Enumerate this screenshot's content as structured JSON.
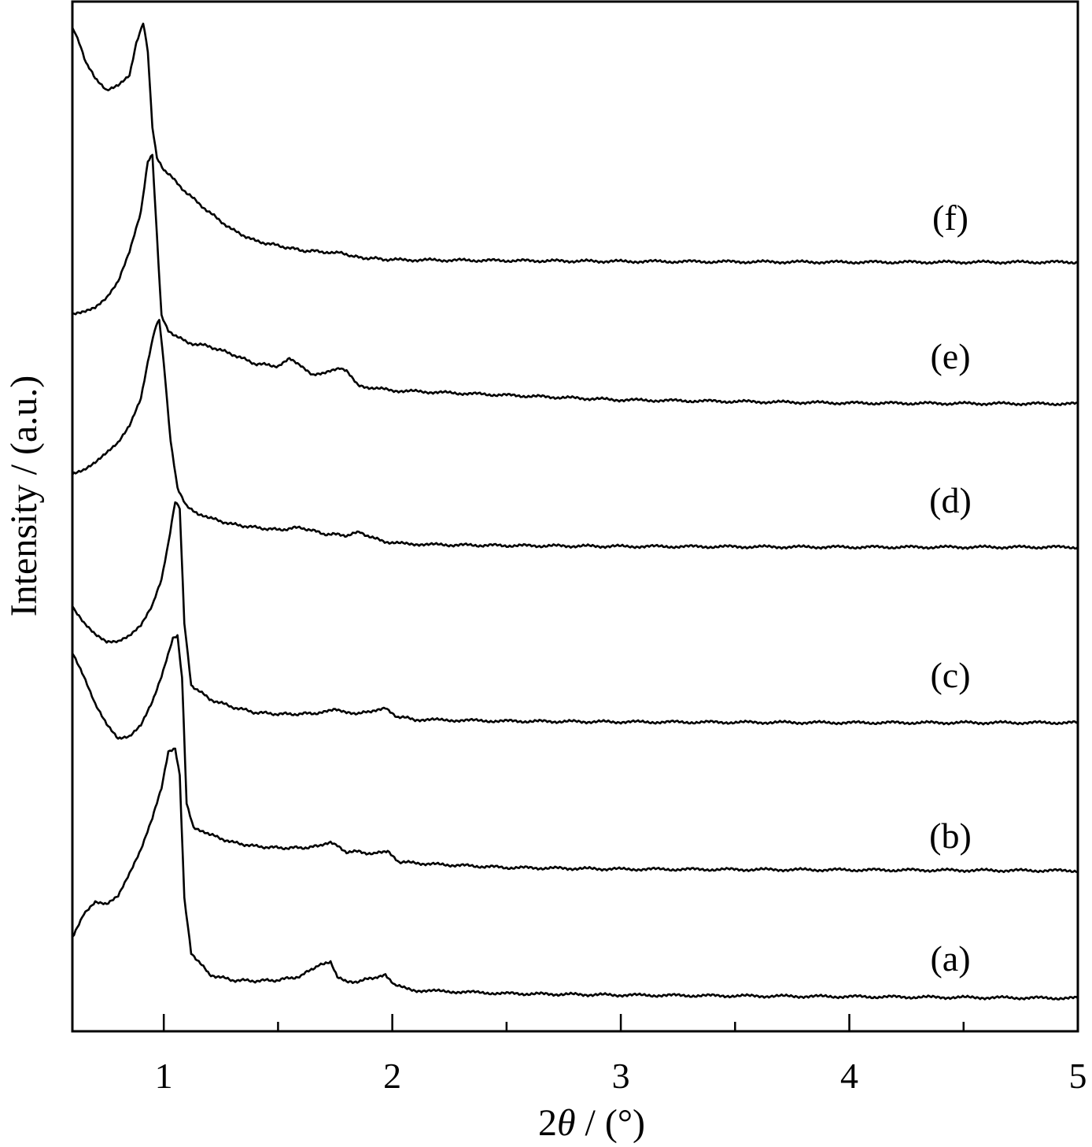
{
  "chart_data": {
    "type": "line",
    "title": "",
    "xlabel_prefix": "2",
    "xlabel_theta": "θ",
    "xlabel_suffix": " / (°)",
    "ylabel": "Intensity / (a.u.)",
    "xlim": [
      0.6,
      5.0
    ],
    "yticks_shown": false,
    "grid": false,
    "legend": "none",
    "x_major_ticks": [
      1,
      2,
      3,
      4,
      5
    ],
    "x_minor_ticks": [
      1.5,
      2.5,
      3.5,
      4.5
    ],
    "x_tick_labels": [
      "1",
      "2",
      "3",
      "4",
      "5"
    ],
    "line_color": "#000000",
    "series": [
      {
        "name": "(a)",
        "points": [
          [
            0.6,
            1190
          ],
          [
            0.65,
            1160
          ],
          [
            0.7,
            1145
          ],
          [
            0.75,
            1148
          ],
          [
            0.8,
            1138
          ],
          [
            0.85,
            1110
          ],
          [
            0.9,
            1080
          ],
          [
            0.95,
            1040
          ],
          [
            0.99,
            1000
          ],
          [
            1.02,
            955
          ],
          [
            1.05,
            952
          ],
          [
            1.07,
            985
          ],
          [
            1.09,
            1140
          ],
          [
            1.12,
            1210
          ],
          [
            1.2,
            1238
          ],
          [
            1.3,
            1245
          ],
          [
            1.4,
            1246
          ],
          [
            1.5,
            1245
          ],
          [
            1.6,
            1240
          ],
          [
            1.68,
            1225
          ],
          [
            1.73,
            1222
          ],
          [
            1.76,
            1240
          ],
          [
            1.8,
            1248
          ],
          [
            1.86,
            1246
          ],
          [
            1.92,
            1242
          ],
          [
            1.97,
            1237
          ],
          [
            2.01,
            1252
          ],
          [
            2.1,
            1258
          ],
          [
            2.5,
            1262
          ],
          [
            3.0,
            1264
          ],
          [
            4.0,
            1266
          ],
          [
            5.0,
            1268
          ]
        ]
      },
      {
        "name": "(b)",
        "points": [
          [
            0.6,
            830
          ],
          [
            0.65,
            860
          ],
          [
            0.7,
            895
          ],
          [
            0.75,
            920
          ],
          [
            0.8,
            938
          ],
          [
            0.85,
            935
          ],
          [
            0.9,
            920
          ],
          [
            0.95,
            890
          ],
          [
            0.99,
            860
          ],
          [
            1.04,
            812
          ],
          [
            1.06,
            808
          ],
          [
            1.08,
            860
          ],
          [
            1.1,
            1020
          ],
          [
            1.13,
            1050
          ],
          [
            1.2,
            1060
          ],
          [
            1.3,
            1070
          ],
          [
            1.4,
            1075
          ],
          [
            1.5,
            1077
          ],
          [
            1.6,
            1077
          ],
          [
            1.68,
            1075
          ],
          [
            1.73,
            1070
          ],
          [
            1.76,
            1075
          ],
          [
            1.8,
            1082
          ],
          [
            1.86,
            1082
          ],
          [
            1.92,
            1085
          ],
          [
            1.98,
            1080
          ],
          [
            2.03,
            1095
          ],
          [
            2.2,
            1098
          ],
          [
            2.5,
            1102
          ],
          [
            3.0,
            1104
          ],
          [
            4.0,
            1105
          ],
          [
            5.0,
            1106
          ]
        ]
      },
      {
        "name": "(c)",
        "points": [
          [
            0.6,
            770
          ],
          [
            0.65,
            790
          ],
          [
            0.7,
            805
          ],
          [
            0.75,
            815
          ],
          [
            0.8,
            815
          ],
          [
            0.85,
            808
          ],
          [
            0.9,
            795
          ],
          [
            0.95,
            770
          ],
          [
            0.99,
            735
          ],
          [
            1.02,
            690
          ],
          [
            1.05,
            638
          ],
          [
            1.07,
            645
          ],
          [
            1.09,
            790
          ],
          [
            1.12,
            870
          ],
          [
            1.2,
            888
          ],
          [
            1.3,
            898
          ],
          [
            1.4,
            905
          ],
          [
            1.5,
            907
          ],
          [
            1.6,
            907
          ],
          [
            1.7,
            905
          ],
          [
            1.75,
            902
          ],
          [
            1.8,
            906
          ],
          [
            1.9,
            905
          ],
          [
            1.97,
            898
          ],
          [
            2.02,
            910
          ],
          [
            2.1,
            914
          ],
          [
            2.5,
            916
          ],
          [
            3.0,
            917
          ],
          [
            4.0,
            918
          ],
          [
            5.0,
            918
          ]
        ]
      },
      {
        "name": "(d)",
        "points": [
          [
            0.6,
            603
          ],
          [
            0.65,
            598
          ],
          [
            0.7,
            588
          ],
          [
            0.75,
            575
          ],
          [
            0.8,
            562
          ],
          [
            0.85,
            540
          ],
          [
            0.9,
            505
          ],
          [
            0.93,
            460
          ],
          [
            0.96,
            420
          ],
          [
            0.98,
            405
          ],
          [
            1.0,
            460
          ],
          [
            1.03,
            560
          ],
          [
            1.06,
            620
          ],
          [
            1.1,
            642
          ],
          [
            1.15,
            653
          ],
          [
            1.2,
            658
          ],
          [
            1.3,
            666
          ],
          [
            1.4,
            670
          ],
          [
            1.5,
            673
          ],
          [
            1.6,
            670
          ],
          [
            1.7,
            678
          ],
          [
            1.8,
            680
          ],
          [
            1.86,
            676
          ],
          [
            1.92,
            684
          ],
          [
            2.0,
            690
          ],
          [
            2.2,
            692
          ],
          [
            2.5,
            693
          ],
          [
            3.0,
            694
          ],
          [
            4.0,
            695
          ],
          [
            5.0,
            695
          ]
        ]
      },
      {
        "name": "(e)",
        "points": [
          [
            0.6,
            398
          ],
          [
            0.65,
            395
          ],
          [
            0.7,
            390
          ],
          [
            0.75,
            378
          ],
          [
            0.8,
            358
          ],
          [
            0.85,
            320
          ],
          [
            0.9,
            270
          ],
          [
            0.93,
            205
          ],
          [
            0.95,
            198
          ],
          [
            0.97,
            300
          ],
          [
            0.99,
            400
          ],
          [
            1.02,
            420
          ],
          [
            1.1,
            435
          ],
          [
            1.2,
            440
          ],
          [
            1.3,
            450
          ],
          [
            1.4,
            462
          ],
          [
            1.5,
            465
          ],
          [
            1.55,
            455
          ],
          [
            1.6,
            465
          ],
          [
            1.65,
            477
          ],
          [
            1.7,
            475
          ],
          [
            1.77,
            468
          ],
          [
            1.8,
            472
          ],
          [
            1.85,
            490
          ],
          [
            2.0,
            496
          ],
          [
            2.5,
            502
          ],
          [
            3.0,
            508
          ],
          [
            4.0,
            512
          ],
          [
            5.0,
            513
          ]
        ]
      },
      {
        "name": "(f)",
        "points": [
          [
            0.6,
            35
          ],
          [
            0.63,
            55
          ],
          [
            0.66,
            80
          ],
          [
            0.7,
            100
          ],
          [
            0.75,
            115
          ],
          [
            0.8,
            108
          ],
          [
            0.85,
            95
          ],
          [
            0.88,
            55
          ],
          [
            0.91,
            30
          ],
          [
            0.93,
            65
          ],
          [
            0.95,
            160
          ],
          [
            0.97,
            200
          ],
          [
            1.0,
            215
          ],
          [
            1.1,
            245
          ],
          [
            1.2,
            270
          ],
          [
            1.3,
            292
          ],
          [
            1.4,
            306
          ],
          [
            1.5,
            312
          ],
          [
            1.6,
            318
          ],
          [
            1.7,
            320
          ],
          [
            1.77,
            320
          ],
          [
            1.82,
            326
          ],
          [
            1.9,
            328
          ],
          [
            2.0,
            330
          ],
          [
            2.5,
            331
          ],
          [
            3.0,
            332
          ],
          [
            4.0,
            333
          ],
          [
            5.0,
            333
          ]
        ]
      }
    ]
  }
}
